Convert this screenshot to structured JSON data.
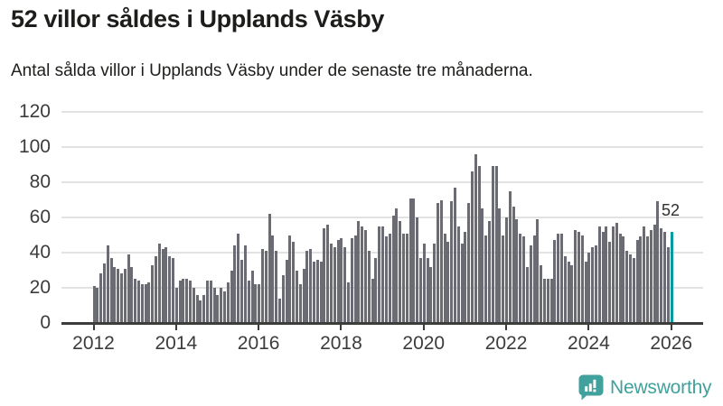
{
  "chart_data": {
    "type": "bar",
    "title": "52 villor såldes i Upplands Väsby",
    "subtitle": "Antal sålda villor i Upplands Väsby under de senaste tre månaderna.",
    "frequency": "monthly",
    "start": "2012-01",
    "end": "2026-01",
    "ylim": [
      0,
      120
    ],
    "yticks": [
      0,
      20,
      40,
      60,
      80,
      100,
      120
    ],
    "xticks": [
      2012,
      2014,
      2016,
      2018,
      2020,
      2022,
      2024,
      2026
    ],
    "grid": "horizontal",
    "legend": "none",
    "bar_color": "#6b6b74",
    "highlight_color": "#009ba1",
    "highlight": {
      "month": "2026-01",
      "value": 52,
      "label": "52"
    },
    "years": [
      {
        "year": 2012,
        "values": [
          21,
          20,
          28,
          34,
          44,
          37,
          32,
          31,
          28,
          31,
          39,
          32
        ]
      },
      {
        "year": 2013,
        "values": [
          25,
          24,
          22,
          22,
          23,
          33,
          38,
          45,
          42,
          43,
          38,
          37
        ]
      },
      {
        "year": 2014,
        "values": [
          20,
          24,
          25,
          25,
          24,
          20,
          16,
          13,
          16,
          24,
          24,
          20
        ]
      },
      {
        "year": 2015,
        "values": [
          16,
          20,
          18,
          23,
          30,
          44,
          51,
          36,
          44,
          24,
          30,
          22
        ]
      },
      {
        "year": 2016,
        "values": [
          22,
          42,
          41,
          62,
          50,
          41,
          14,
          27,
          36,
          50,
          46,
          30
        ]
      },
      {
        "year": 2017,
        "values": [
          22,
          31,
          41,
          42,
          35,
          36,
          35,
          54,
          56,
          45,
          43,
          47
        ]
      },
      {
        "year": 2018,
        "values": [
          48,
          43,
          23,
          48,
          50,
          58,
          55,
          53,
          41,
          25,
          37,
          55
        ]
      },
      {
        "year": 2019,
        "values": [
          55,
          49,
          51,
          61,
          65,
          58,
          51,
          51,
          71,
          71,
          60,
          37
        ]
      },
      {
        "year": 2020,
        "values": [
          45,
          37,
          32,
          45,
          68,
          70,
          51,
          46,
          69,
          77,
          55,
          45
        ]
      },
      {
        "year": 2021,
        "values": [
          52,
          68,
          86,
          96,
          89,
          65,
          50,
          58,
          89,
          89,
          65,
          50
        ]
      },
      {
        "year": 2022,
        "values": [
          60,
          75,
          66,
          59,
          51,
          49,
          32,
          44,
          50,
          59,
          33,
          25
        ]
      },
      {
        "year": 2023,
        "values": [
          25,
          25,
          47,
          51,
          51,
          38,
          35,
          33,
          53,
          52,
          50,
          35
        ]
      },
      {
        "year": 2024,
        "values": [
          40,
          43,
          44,
          55,
          52,
          55,
          46,
          55,
          57,
          51,
          49,
          41
        ]
      },
      {
        "year": 2025,
        "values": [
          39,
          37,
          47,
          49,
          55,
          49,
          53,
          56,
          69,
          54,
          52,
          43
        ]
      },
      {
        "year": 2026,
        "values": [
          52
        ]
      }
    ]
  },
  "annotation": {
    "last_value_label": "52"
  },
  "branding": {
    "name": "Newsworthy",
    "color": "#3fa19c"
  },
  "colors": {
    "background": "#ffffff",
    "text": "#1d1d1b",
    "axis_text": "#3c3c3b",
    "gridline": "#e2e2e2",
    "axis_line": "#3c3c3b"
  }
}
